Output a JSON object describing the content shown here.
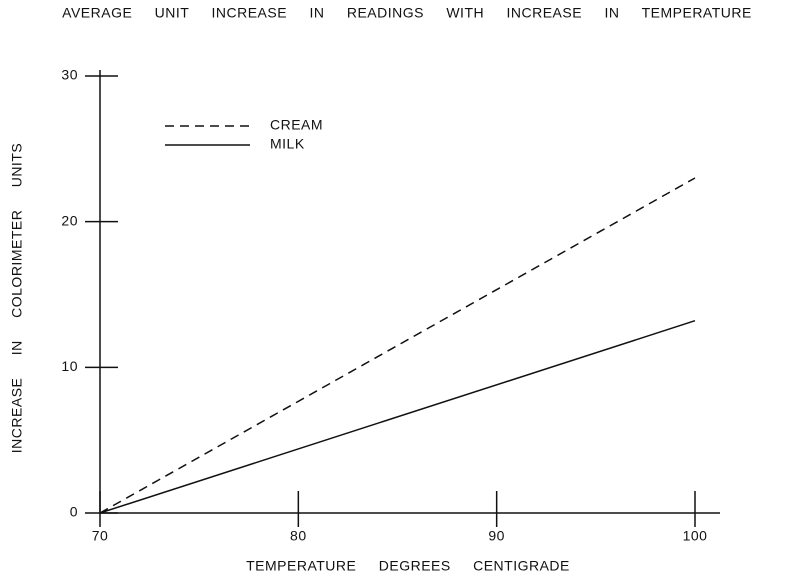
{
  "chart_data": {
    "type": "line",
    "title": "AVERAGE UNIT INCREASE IN READINGS WITH INCREASE IN TEMPERATURE",
    "x_label": "TEMPERATURE DEGREES CENTIGRADE",
    "y_label": "INCREASE IN COLORIMETER UNITS",
    "x": [
      70,
      100
    ],
    "series": [
      {
        "name": "CREAM",
        "color": "#111111",
        "linestyle": "dashed",
        "values": [
          0,
          23
        ]
      },
      {
        "name": "MILK",
        "color": "#111111",
        "linestyle": "solid",
        "values": [
          0,
          13.2
        ]
      }
    ],
    "xlim": [
      70,
      100
    ],
    "xticks": [
      70,
      80,
      90,
      100
    ],
    "ylim": [
      0,
      30
    ],
    "yticks": [
      0,
      10,
      20,
      30
    ],
    "grid": false,
    "legend": "upper left"
  }
}
